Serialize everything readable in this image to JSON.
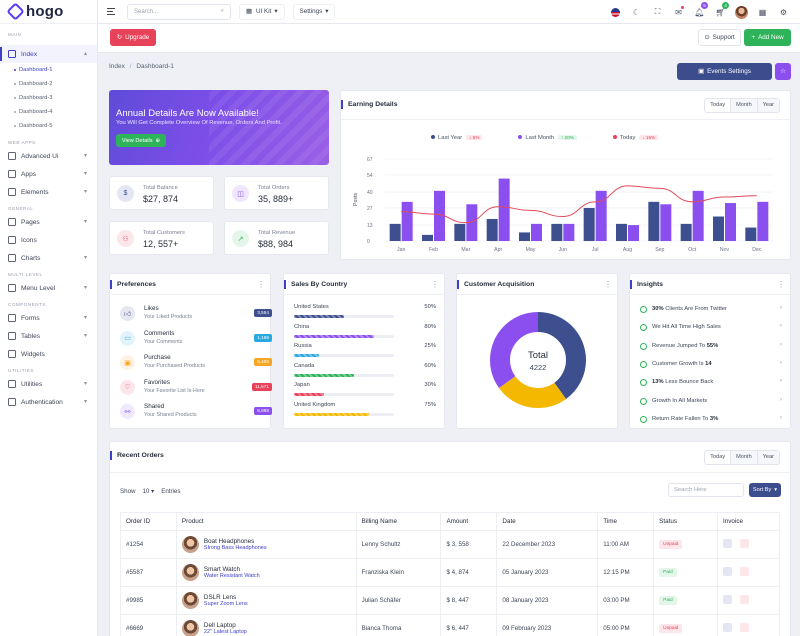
{
  "brand": {
    "name": "hogo"
  },
  "sidebar": {
    "sections": {
      "main": "MAIN",
      "web_apps": "WEB APPS",
      "general": "GENERAL",
      "multi_level": "MULTI LEVEL",
      "components": "COMPONENTS",
      "utilities": "UTILITIES"
    },
    "index": "Index",
    "dashboards": [
      "Dashboard-1",
      "Dashboard-2",
      "Dashboard-3",
      "Dashboard-4",
      "Dashboard-5"
    ],
    "web_apps": [
      "Advanced Ui",
      "Apps",
      "Elements"
    ],
    "general": [
      "Pages",
      "Icons",
      "Charts"
    ],
    "multi_level": [
      "Menu Level"
    ],
    "components": [
      "Forms",
      "Tables",
      "Widgets"
    ],
    "utilities": [
      "Utilities",
      "Authentication"
    ]
  },
  "topbar": {
    "search_placeholder": "Search...",
    "uikit": "UI Kit",
    "settings": "Settings",
    "badge_bell": "5",
    "badge_cart": "4"
  },
  "actions": {
    "upgrade": "Upgrade",
    "support": "Support",
    "add_new": "Add New"
  },
  "breadcrumb": {
    "root": "Index",
    "current": "Dashboard-1"
  },
  "events_settings": "Events Settings",
  "banner": {
    "title": "Annual Details Are Now Available!",
    "subtitle": "You Will Get Complete Overview Of Revenue, Orders And Profit.",
    "button": "View Details"
  },
  "stats": [
    {
      "label": "Total Balance",
      "value": "$27, 874"
    },
    {
      "label": "Total Orders",
      "value": "35, 889+"
    },
    {
      "label": "Total Customers",
      "value": "12, 557+"
    },
    {
      "label": "Total Revenue",
      "value": "$88, 984"
    }
  ],
  "earning": {
    "title": "Earning Details",
    "tabs": [
      "Today",
      "Month",
      "Year"
    ],
    "legend": [
      {
        "label": "Last Year",
        "change": "5%"
      },
      {
        "label": "Last Month",
        "change": "20%"
      },
      {
        "label": "Today",
        "change": "15%"
      }
    ]
  },
  "chart_data": {
    "type": "bar",
    "ylabel": "Posts",
    "ylim": [
      0,
      67
    ],
    "yticks": [
      0,
      13,
      27,
      40,
      54,
      67
    ],
    "categories": [
      "Jan",
      "Feb",
      "Mar",
      "Apr",
      "May",
      "Jun",
      "Jul",
      "Aug",
      "Sep",
      "Oct",
      "Nov",
      "Dec"
    ],
    "series": [
      {
        "name": "Last Year",
        "type": "bar",
        "color": "#3d4f8f",
        "values": [
          14,
          5,
          14,
          18,
          7,
          14,
          27,
          14,
          32,
          14,
          20,
          11
        ]
      },
      {
        "name": "Last Month",
        "type": "bar",
        "color": "#8b4ff0",
        "values": [
          32,
          41,
          30,
          51,
          14,
          14,
          41,
          13,
          30,
          41,
          31,
          32
        ]
      },
      {
        "name": "Today",
        "type": "line",
        "color": "#e34b5a",
        "values": [
          24,
          22,
          15,
          28,
          25,
          20,
          32,
          45,
          43,
          32,
          36,
          37
        ]
      }
    ]
  },
  "preferences": {
    "title": "Preferences",
    "items": [
      {
        "title": "Likes",
        "sub": "Your Liked Products",
        "badge": "3,554",
        "color": "#3d4f8f",
        "icon": "like-icon"
      },
      {
        "title": "Comments",
        "sub": "Your Comments",
        "badge": "1,186",
        "color": "#2aa8e0",
        "icon": "comment-icon"
      },
      {
        "title": "Purchase",
        "sub": "Your Purchased Products",
        "badge": "5,455",
        "color": "#f5a623",
        "icon": "cart-icon"
      },
      {
        "title": "Favorites",
        "sub": "Your Favorite List Is Here",
        "badge": "11,571",
        "color": "#e8415a",
        "icon": "heart-icon"
      },
      {
        "title": "Shared",
        "sub": "Your Shared Products",
        "badge": "6,888",
        "color": "#8b4ff0",
        "icon": "share-icon"
      }
    ]
  },
  "countries": {
    "title": "Sales By Country",
    "items": [
      {
        "name": "United States",
        "pct": "50%",
        "value": 50,
        "color": "#3d4f8f"
      },
      {
        "name": "China",
        "pct": "80%",
        "value": 80,
        "color": "#8b4ff0"
      },
      {
        "name": "Russia",
        "pct": "25%",
        "value": 25,
        "color": "#2aa8e0"
      },
      {
        "name": "Canada",
        "pct": "60%",
        "value": 60,
        "color": "#2fb35a"
      },
      {
        "name": "Japan",
        "pct": "30%",
        "value": 30,
        "color": "#e8415a"
      },
      {
        "name": "United Kingdom",
        "pct": "75%",
        "value": 75,
        "color": "#f5b800"
      }
    ]
  },
  "acquisition": {
    "title": "Customer Acquisition",
    "total_label": "Total",
    "total": "4222",
    "segments": [
      {
        "value": 40,
        "color": "#3d4f8f"
      },
      {
        "value": 25,
        "color": "#f5b800"
      },
      {
        "value": 35,
        "color": "#8b4ff0"
      }
    ]
  },
  "insights": {
    "title": "Insights",
    "items": [
      {
        "bold": "30%",
        "text": " Clients Are From Twitter",
        "lead": ""
      },
      {
        "bold": "",
        "text": "We Hit All Time High Sales",
        "lead": ""
      },
      {
        "bold": "55%",
        "text": "",
        "lead": "Revenue Jumped To "
      },
      {
        "bold": "14",
        "text": "",
        "lead": "Customer Growth Is "
      },
      {
        "bold": "13%",
        "text": " Less Bounce Back",
        "lead": ""
      },
      {
        "bold": "",
        "text": "Growth In All Markets",
        "lead": ""
      },
      {
        "bold": "3%",
        "text": "",
        "lead": "Return Rate Fallen To "
      }
    ]
  },
  "orders": {
    "title": "Recent Orders",
    "tabs": [
      "Today",
      "Month",
      "Year"
    ],
    "show": "Show",
    "entries_count": "10",
    "entries": "Entries",
    "search_placeholder": "Search Here",
    "sort": "Sort By",
    "columns": [
      "Order ID",
      "Product",
      "Billing Name",
      "Amount",
      "Date",
      "Time",
      "Status",
      "Invoice"
    ],
    "rows": [
      {
        "id": "#1254",
        "product": "Boat Headphones",
        "sub": "Strong Bass Headphones",
        "billing": "Lenny Schultz",
        "amount": "$ 3, 558",
        "date": "22 December 2023",
        "time": "11:00 AM",
        "status": "Unpaid"
      },
      {
        "id": "#5587",
        "product": "Smart Watch",
        "sub": "Water Resistant Watch",
        "billing": "Franziska Klein",
        "amount": "$ 4, 874",
        "date": "05 January 2023",
        "time": "12:15 PM",
        "status": "Paid"
      },
      {
        "id": "#9985",
        "product": "DSLR Lens",
        "sub": "Super Zoom Lens",
        "billing": "Julian Schäfer",
        "amount": "$ 8, 447",
        "date": "08 January 2023",
        "time": "03:00 PM",
        "status": "Paid"
      },
      {
        "id": "#6669",
        "product": "Dell Laptop",
        "sub": "22\" Latest Laptop",
        "billing": "Bianca Thoma",
        "amount": "$ 6, 447",
        "date": "09 February 2023",
        "time": "05:00 PM",
        "status": "Unpaid"
      }
    ]
  }
}
